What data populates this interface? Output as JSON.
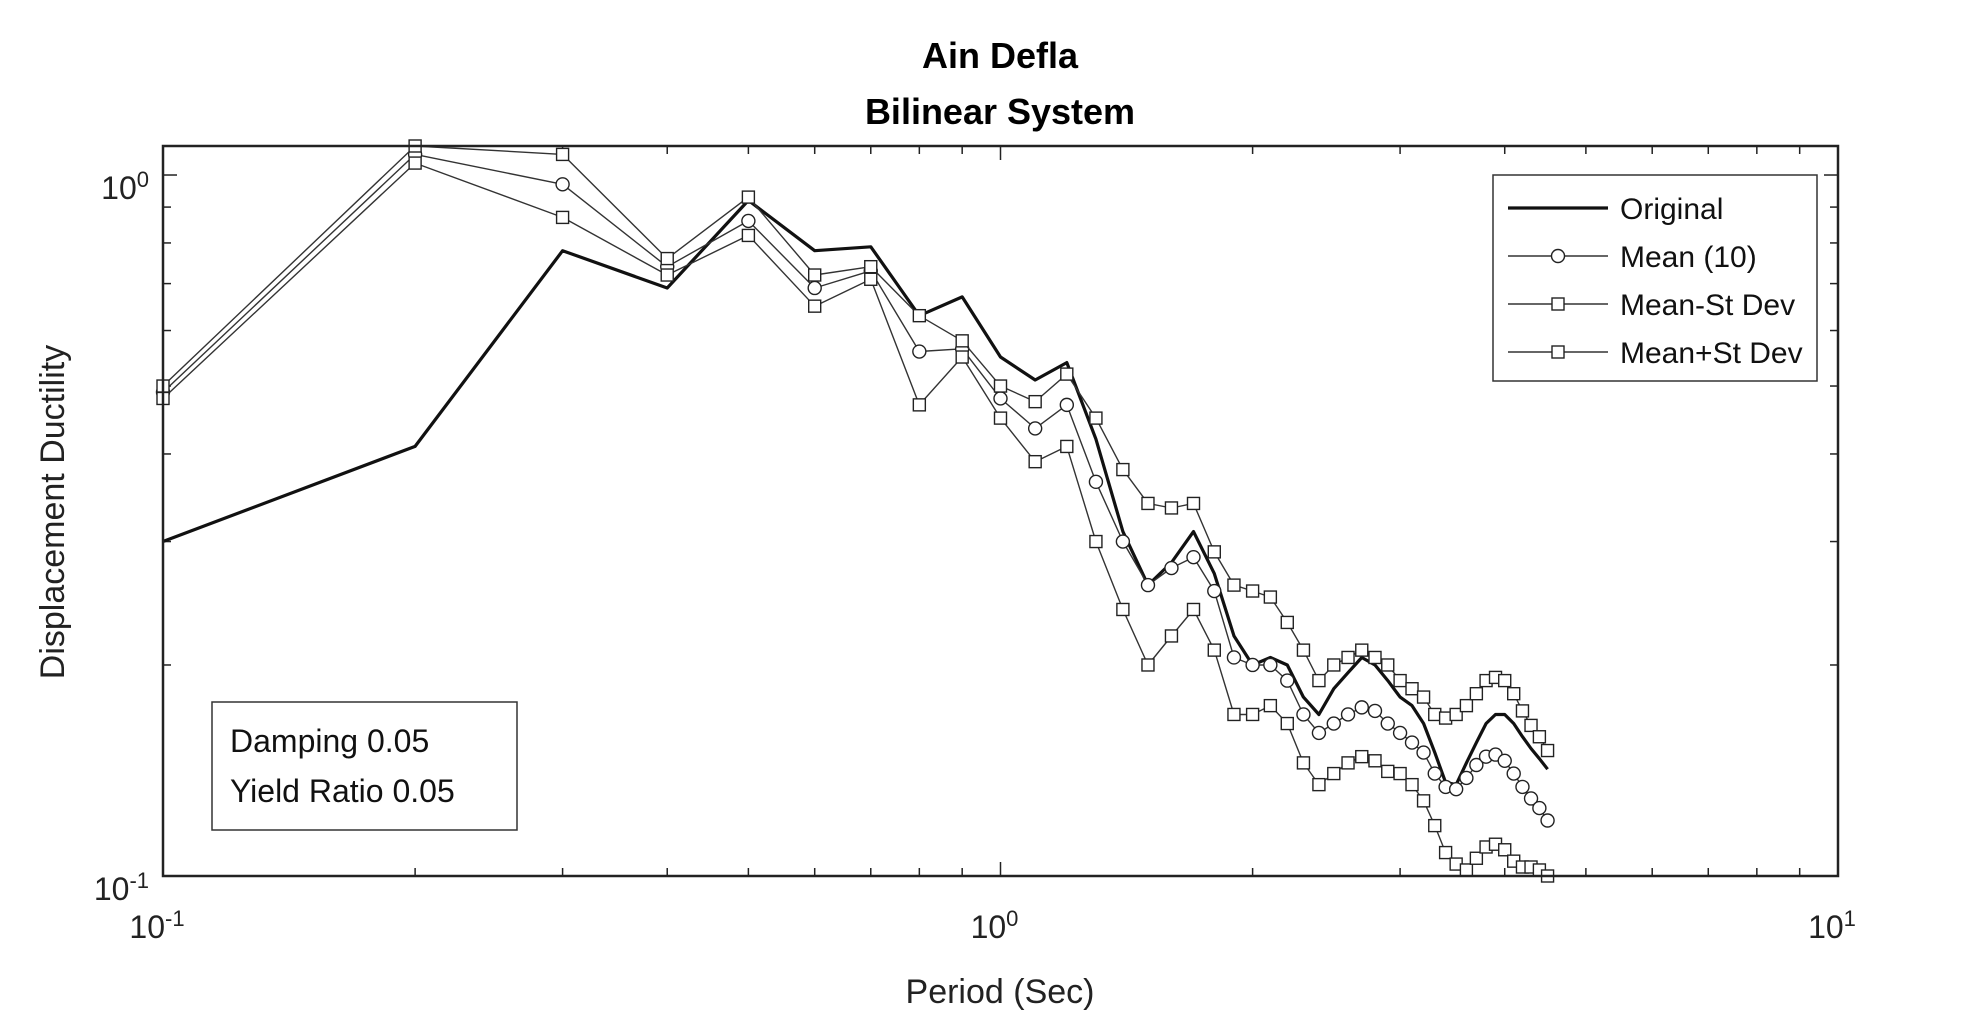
{
  "chart_data": {
    "type": "line",
    "title": "Ain Defla",
    "subtitle": "Bilinear System",
    "xlabel": "Period (Sec)",
    "ylabel": "Displacement Ductility",
    "xscale": "log",
    "yscale": "log",
    "xlim": [
      0.1,
      10
    ],
    "ylim": [
      0.1,
      1.1
    ],
    "grid": false,
    "legend_position": "top-right",
    "x_tick_labels": [
      {
        "value": 0.1,
        "base": "10",
        "exp": "-1"
      },
      {
        "value": 1,
        "base": "10",
        "exp": "0"
      },
      {
        "value": 10,
        "base": "10",
        "exp": "1"
      }
    ],
    "y_tick_labels": [
      {
        "value": 0.1,
        "base": "10",
        "exp": "-1"
      },
      {
        "value": 1,
        "base": "10",
        "exp": "0"
      }
    ],
    "annotation": [
      "Damping 0.05",
      "Yield Ratio 0.05"
    ],
    "series": [
      {
        "name": "Original",
        "marker": "none",
        "line_width": "thick",
        "x": [
          0.1,
          0.2,
          0.3,
          0.4,
          0.5,
          0.6,
          0.7,
          0.8,
          0.9,
          1.0,
          1.1,
          1.2,
          1.3,
          1.4,
          1.5,
          1.6,
          1.7,
          1.8,
          1.9,
          2.0,
          2.1,
          2.2,
          2.3,
          2.4,
          2.5,
          2.6,
          2.7,
          2.8,
          2.9,
          3.0,
          3.1,
          3.2,
          3.3,
          3.4,
          3.5,
          3.6,
          3.7,
          3.8,
          3.9,
          4.0,
          4.1,
          4.2,
          4.3,
          4.4,
          4.5
        ],
        "y": [
          0.3,
          0.41,
          0.78,
          0.69,
          0.92,
          0.78,
          0.79,
          0.63,
          0.67,
          0.55,
          0.51,
          0.54,
          0.42,
          0.31,
          0.26,
          0.28,
          0.31,
          0.27,
          0.22,
          0.2,
          0.205,
          0.2,
          0.18,
          0.17,
          0.185,
          0.195,
          0.205,
          0.2,
          0.19,
          0.18,
          0.175,
          0.165,
          0.15,
          0.136,
          0.135,
          0.145,
          0.155,
          0.165,
          0.17,
          0.17,
          0.165,
          0.158,
          0.152,
          0.147,
          0.142
        ]
      },
      {
        "name": "Mean (10)",
        "marker": "circle",
        "line_width": "thin",
        "x": [
          0.1,
          0.2,
          0.3,
          0.4,
          0.5,
          0.6,
          0.7,
          0.8,
          0.9,
          1.0,
          1.1,
          1.2,
          1.3,
          1.4,
          1.5,
          1.6,
          1.7,
          1.8,
          1.9,
          2.0,
          2.1,
          2.2,
          2.3,
          2.4,
          2.5,
          2.6,
          2.7,
          2.8,
          2.9,
          3.0,
          3.1,
          3.2,
          3.3,
          3.4,
          3.5,
          3.6,
          3.7,
          3.8,
          3.9,
          4.0,
          4.1,
          4.2,
          4.3,
          4.4,
          4.5
        ],
        "y": [
          0.49,
          1.07,
          0.97,
          0.74,
          0.86,
          0.69,
          0.73,
          0.56,
          0.565,
          0.48,
          0.435,
          0.47,
          0.365,
          0.3,
          0.26,
          0.275,
          0.285,
          0.255,
          0.205,
          0.2,
          0.2,
          0.19,
          0.17,
          0.16,
          0.165,
          0.17,
          0.174,
          0.172,
          0.165,
          0.16,
          0.155,
          0.15,
          0.14,
          0.134,
          0.133,
          0.138,
          0.144,
          0.148,
          0.149,
          0.146,
          0.14,
          0.134,
          0.129,
          0.125,
          0.12
        ]
      },
      {
        "name": "Mean-St Dev",
        "marker": "square",
        "line_width": "thin",
        "x": [
          0.1,
          0.2,
          0.3,
          0.4,
          0.5,
          0.6,
          0.7,
          0.8,
          0.9,
          1.0,
          1.1,
          1.2,
          1.3,
          1.4,
          1.5,
          1.6,
          1.7,
          1.8,
          1.9,
          2.0,
          2.1,
          2.2,
          2.3,
          2.4,
          2.5,
          2.6,
          2.7,
          2.8,
          2.9,
          3.0,
          3.1,
          3.2,
          3.3,
          3.4,
          3.5,
          3.6,
          3.7,
          3.8,
          3.9,
          4.0,
          4.1,
          4.2,
          4.3,
          4.4,
          4.5
        ],
        "y": [
          0.48,
          1.04,
          0.87,
          0.72,
          0.82,
          0.65,
          0.71,
          0.47,
          0.55,
          0.45,
          0.39,
          0.41,
          0.3,
          0.24,
          0.2,
          0.22,
          0.24,
          0.21,
          0.17,
          0.17,
          0.175,
          0.165,
          0.145,
          0.135,
          0.14,
          0.145,
          0.148,
          0.146,
          0.141,
          0.14,
          0.135,
          0.128,
          0.118,
          0.108,
          0.104,
          0.102,
          0.106,
          0.11,
          0.111,
          0.109,
          0.105,
          0.103,
          0.103,
          0.102,
          0.1
        ]
      },
      {
        "name": "Mean+St Dev",
        "marker": "square",
        "line_width": "thin",
        "x": [
          0.1,
          0.2,
          0.3,
          0.4,
          0.5,
          0.6,
          0.7,
          0.8,
          0.9,
          1.0,
          1.1,
          1.2,
          1.3,
          1.4,
          1.5,
          1.6,
          1.7,
          1.8,
          1.9,
          2.0,
          2.1,
          2.2,
          2.3,
          2.4,
          2.5,
          2.6,
          2.7,
          2.8,
          2.9,
          3.0,
          3.1,
          3.2,
          3.3,
          3.4,
          3.5,
          3.6,
          3.7,
          3.8,
          3.9,
          4.0,
          4.1,
          4.2,
          4.3,
          4.4,
          4.5
        ],
        "y": [
          0.5,
          1.1,
          1.07,
          0.76,
          0.93,
          0.72,
          0.74,
          0.63,
          0.58,
          0.5,
          0.475,
          0.52,
          0.45,
          0.38,
          0.34,
          0.335,
          0.34,
          0.29,
          0.26,
          0.255,
          0.25,
          0.23,
          0.21,
          0.19,
          0.2,
          0.205,
          0.21,
          0.205,
          0.2,
          0.19,
          0.185,
          0.18,
          0.17,
          0.168,
          0.17,
          0.175,
          0.182,
          0.19,
          0.192,
          0.19,
          0.182,
          0.172,
          0.164,
          0.158,
          0.151
        ]
      }
    ]
  }
}
